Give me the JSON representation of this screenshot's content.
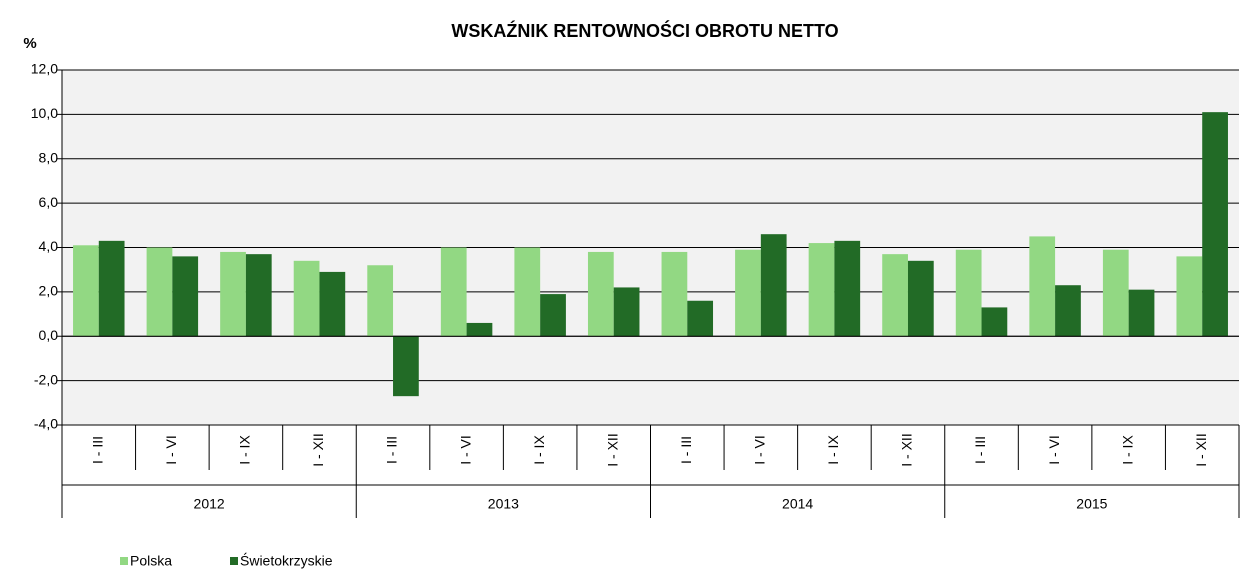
{
  "chart_data": {
    "type": "bar",
    "title": "WSKAŹNIK   RENTOWNOŚCI  OBROTU  NETTO",
    "y_unit": "%",
    "categories": [
      "I - III",
      "I - VI",
      "I - IX",
      "I - XII",
      "I - III",
      "I - VI",
      "I - IX",
      "I - XII",
      "I - III",
      "I - VI",
      "I - IX",
      "I - XII",
      "I - III",
      "I - VI",
      "I - IX",
      "I - XII"
    ],
    "groups": [
      "2012",
      "2013",
      "2014",
      "2015"
    ],
    "series": [
      {
        "name": "Polska",
        "color": "#92d883",
        "values": [
          4.1,
          4.0,
          3.8,
          3.4,
          3.2,
          4.0,
          4.0,
          3.8,
          3.8,
          3.9,
          4.2,
          3.7,
          3.9,
          4.5,
          3.9,
          3.6
        ]
      },
      {
        "name": "Świetokrzyskie",
        "color": "#226b26",
        "values": [
          4.3,
          3.6,
          3.7,
          2.9,
          -2.7,
          0.6,
          1.9,
          2.2,
          1.6,
          4.6,
          4.3,
          3.4,
          1.3,
          2.3,
          2.1,
          10.1
        ]
      }
    ],
    "ylim": [
      -4,
      12
    ],
    "yticks": [
      {
        "value": -4,
        "label": "-4,0"
      },
      {
        "value": -2,
        "label": "-2,0"
      },
      {
        "value": 0,
        "label": "0,0"
      },
      {
        "value": 2,
        "label": "2,0"
      },
      {
        "value": 4,
        "label": "4,0"
      },
      {
        "value": 6,
        "label": "6,0"
      },
      {
        "value": 8,
        "label": "8,0"
      },
      {
        "value": 10,
        "label": "10,0"
      },
      {
        "value": 12,
        "label": "12,0"
      }
    ],
    "grid": true,
    "legend": "bottom-left"
  }
}
